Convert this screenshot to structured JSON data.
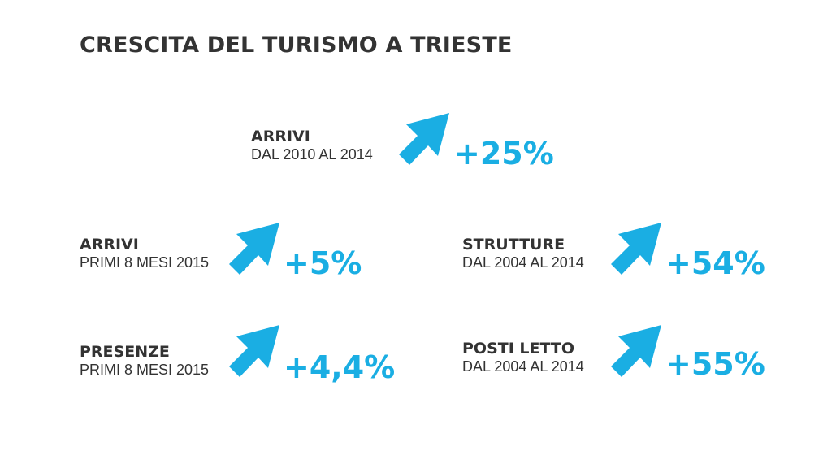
{
  "title": "CRESCITA DEL TURISMO A TRIESTE",
  "colors": {
    "text": "#333333",
    "accent": "#1aaee3"
  },
  "stats": [
    {
      "label": "ARRIVI",
      "sublabel": "DAL 2010 AL 2014",
      "value": "+25%",
      "icon": "arrow-up-right-icon"
    },
    {
      "label": "ARRIVI",
      "sublabel": "PRIMI 8 MESI 2015",
      "value": "+5%",
      "icon": "arrow-up-right-icon"
    },
    {
      "label": "STRUTTURE",
      "sublabel": "DAL 2004 AL 2014",
      "value": "+54%",
      "icon": "arrow-up-right-icon"
    },
    {
      "label": "PRESENZE",
      "sublabel": "PRIMI 8 MESI 2015",
      "value": "+4,4%",
      "icon": "arrow-up-right-icon"
    },
    {
      "label": "POSTI LETTO",
      "sublabel": "DAL 2004 AL 2014",
      "value": "+55%",
      "icon": "arrow-up-right-icon"
    }
  ]
}
